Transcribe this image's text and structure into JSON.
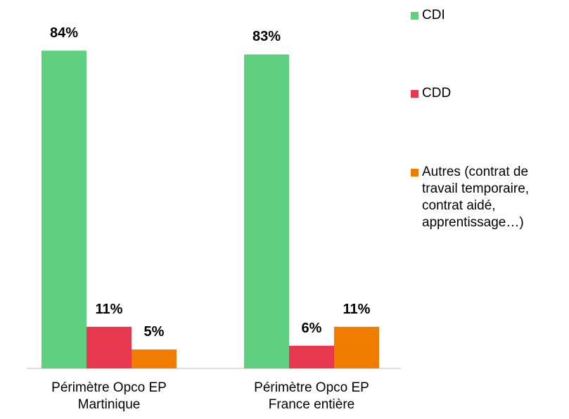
{
  "chart_data": {
    "type": "bar",
    "categories": [
      "Périmètre Opco EP\nMartinique",
      "Périmètre Opco EP\nFrance entière"
    ],
    "series": [
      {
        "name": "CDI",
        "color": "#5fd07f",
        "values": [
          84,
          83
        ],
        "value_labels": [
          "84%",
          "83%"
        ]
      },
      {
        "name": "CDD",
        "color": "#e8384f",
        "values": [
          11,
          6
        ],
        "value_labels": [
          "11%",
          "6%"
        ]
      },
      {
        "name": "Autres (contrat de\ntravail temporaire,\ncontrat aidé,\napprentissage…)",
        "color": "#f07c00",
        "values": [
          5,
          11
        ],
        "value_labels": [
          "5%",
          "11%"
        ]
      }
    ],
    "legend": "right"
  }
}
